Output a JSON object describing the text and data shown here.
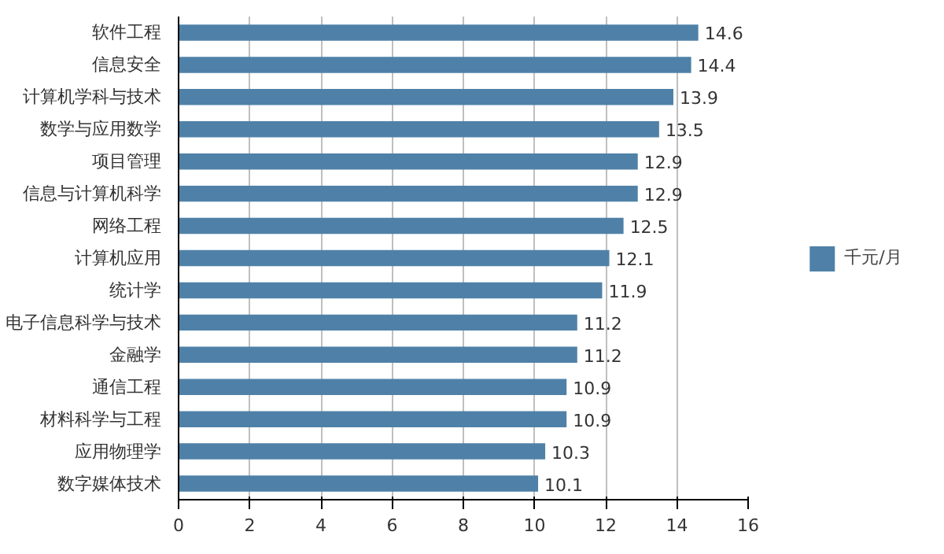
{
  "chart_data": {
    "type": "bar",
    "orientation": "horizontal",
    "categories": [
      "软件工程",
      "信息安全",
      "计算机学科与技术",
      "数学与应用数学",
      "项目管理",
      "信息与计算机科学",
      "网络工程",
      "计算机应用",
      "统计学",
      "电子信息科学与技术",
      "金融学",
      "通信工程",
      "材料科学与工程",
      "应用物理学",
      "数字媒体技术"
    ],
    "series": [
      {
        "name": "千元/月",
        "color": "#4f81a8",
        "values": [
          14.6,
          14.4,
          13.9,
          13.5,
          12.9,
          12.9,
          12.5,
          12.1,
          11.9,
          11.2,
          11.2,
          10.9,
          10.9,
          10.3,
          10.1
        ]
      }
    ],
    "xlim": [
      0,
      16
    ],
    "xticks": [
      0,
      2,
      4,
      6,
      8,
      10,
      12,
      14,
      16
    ],
    "grid": "x",
    "legend": "right",
    "data_labels": true
  }
}
